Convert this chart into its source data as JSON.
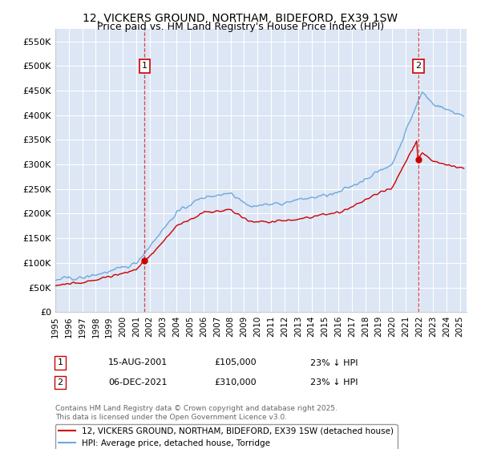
{
  "title": "12, VICKERS GROUND, NORTHAM, BIDEFORD, EX39 1SW",
  "subtitle": "Price paid vs. HM Land Registry's House Price Index (HPI)",
  "title_fontsize": 10,
  "subtitle_fontsize": 9,
  "background_color": "#ffffff",
  "plot_bg_color": "#dce6f5",
  "grid_color": "#ffffff",
  "ylim": [
    0,
    575000
  ],
  "yticks": [
    0,
    50000,
    100000,
    150000,
    200000,
    250000,
    300000,
    350000,
    400000,
    450000,
    500000,
    550000
  ],
  "ytick_labels": [
    "£0",
    "£50K",
    "£100K",
    "£150K",
    "£200K",
    "£250K",
    "£300K",
    "£350K",
    "£400K",
    "£450K",
    "£500K",
    "£550K"
  ],
  "hpi_color": "#6fa8dc",
  "price_color": "#cc0000",
  "marker1_date": 2001.62,
  "marker1_price": 105000,
  "marker1_label": "1",
  "marker2_date": 2021.92,
  "marker2_price": 310000,
  "marker2_label": "2",
  "vline_color": "#cc0000",
  "vline_style": "--",
  "legend_entries": [
    "12, VICKERS GROUND, NORTHAM, BIDEFORD, EX39 1SW (detached house)",
    "HPI: Average price, detached house, Torridge"
  ],
  "annotation1": [
    "1",
    "15-AUG-2001",
    "£105,000",
    "23% ↓ HPI"
  ],
  "annotation2": [
    "2",
    "06-DEC-2021",
    "£310,000",
    "23% ↓ HPI"
  ],
  "footnote": "Contains HM Land Registry data © Crown copyright and database right 2025.\nThis data is licensed under the Open Government Licence v3.0.",
  "xmin": 1995.0,
  "xmax": 2025.5
}
